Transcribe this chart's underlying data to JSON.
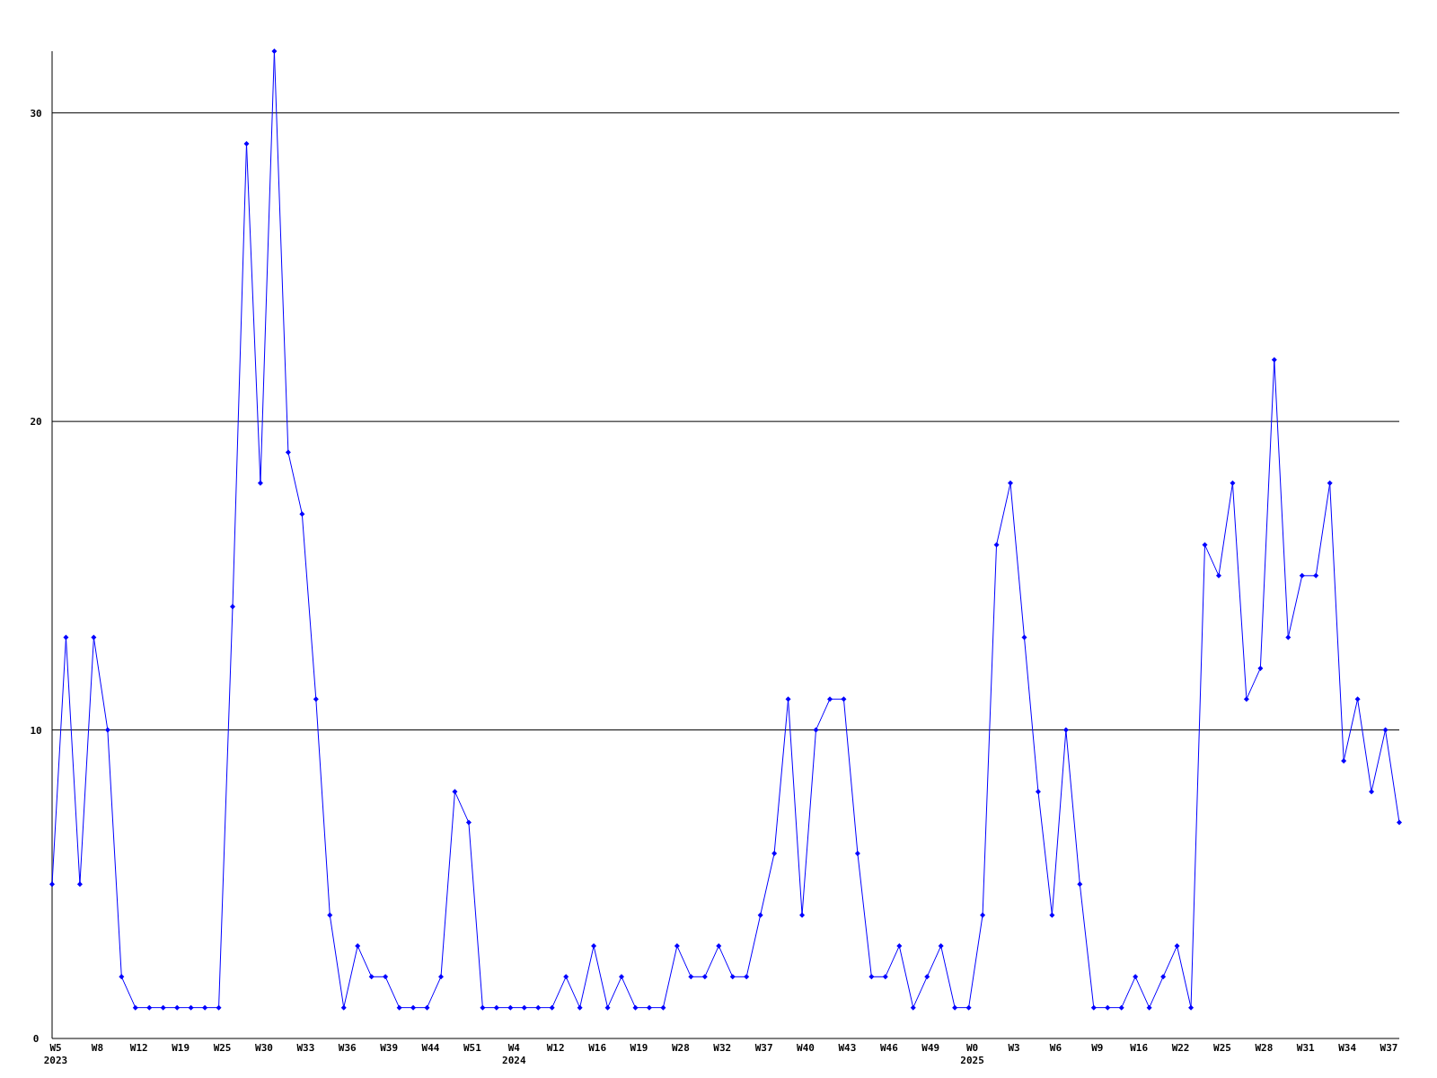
{
  "chart_data": {
    "type": "line",
    "categories": [
      "W5\n2023",
      null,
      null,
      "W8",
      null,
      null,
      "W12",
      null,
      null,
      "W19",
      null,
      null,
      "W25",
      null,
      null,
      "W30",
      null,
      null,
      "W33",
      null,
      null,
      "W36",
      null,
      null,
      "W39",
      null,
      null,
      "W44",
      null,
      null,
      "W51",
      null,
      null,
      "W4\n2024",
      null,
      null,
      "W12",
      null,
      null,
      "W16",
      null,
      null,
      "W19",
      null,
      null,
      "W28",
      null,
      null,
      "W32",
      null,
      null,
      "W37",
      null,
      null,
      "W40",
      null,
      null,
      "W43",
      null,
      null,
      "W46",
      null,
      null,
      "W49",
      null,
      null,
      "W0\n2025",
      null,
      null,
      "W3",
      null,
      null,
      "W6",
      null,
      null,
      "W9",
      null,
      null,
      "W16",
      null,
      null,
      "W22",
      null,
      null,
      "W25",
      null,
      null,
      "W28",
      null,
      null,
      "W31",
      null,
      null,
      "W34",
      null,
      null,
      "W37",
      null
    ],
    "series": [
      {
        "color": "#0000ff",
        "values": [
          5,
          13,
          5,
          13,
          10,
          2,
          1,
          1,
          1,
          1,
          1,
          1,
          1,
          14,
          29,
          18,
          32,
          19,
          17,
          11,
          4,
          1,
          3,
          2,
          2,
          1,
          1,
          1,
          2,
          8,
          7,
          1,
          1,
          1,
          1,
          1,
          1,
          2,
          1,
          3,
          1,
          2,
          1,
          1,
          1,
          3,
          2,
          2,
          3,
          2,
          2,
          4,
          6,
          11,
          4,
          10,
          11,
          11,
          6,
          2,
          2,
          3,
          1,
          2,
          3,
          1,
          1,
          4,
          16,
          18,
          13,
          8,
          4,
          10,
          5,
          1,
          1,
          1,
          2,
          1,
          2,
          3,
          1,
          16,
          15,
          18,
          11,
          12,
          22,
          13,
          15,
          15,
          18,
          9,
          11,
          8,
          10,
          7
        ]
      }
    ],
    "ylim": [
      0,
      32
    ],
    "yticks": [
      0,
      10,
      20,
      30
    ],
    "grid": "y",
    "marker": "diamond",
    "line_style": "solid"
  }
}
